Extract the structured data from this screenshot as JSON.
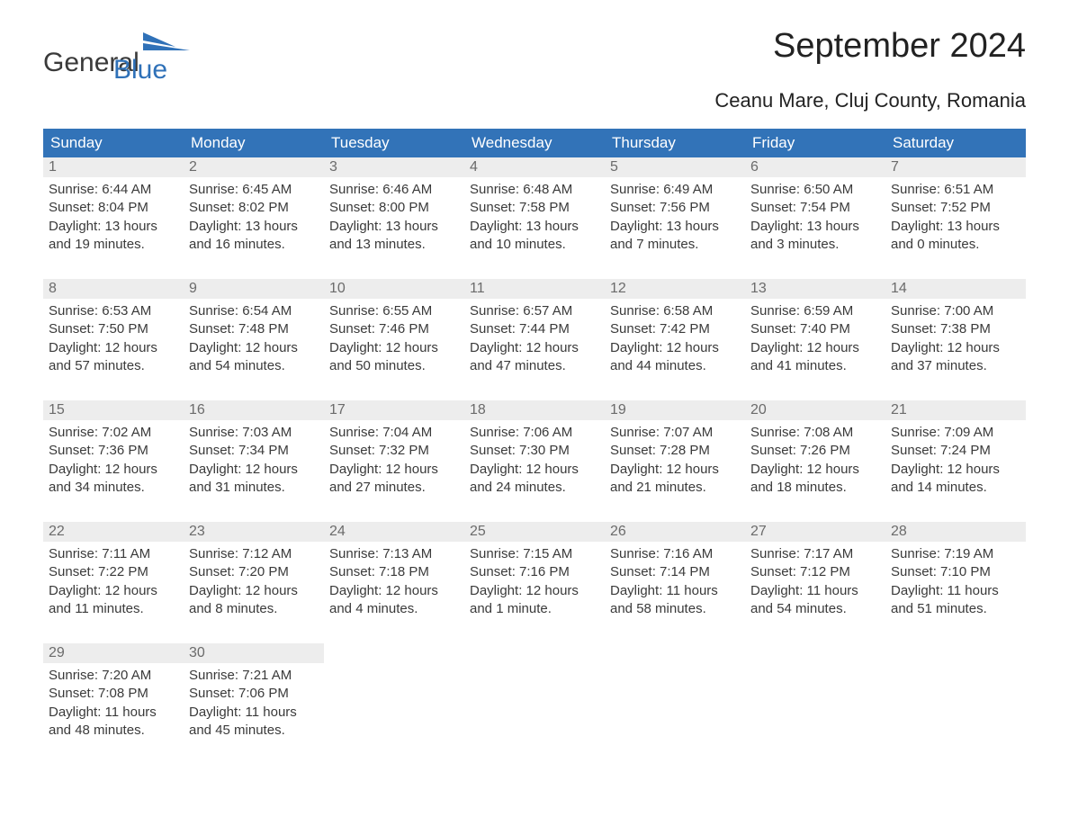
{
  "logo": {
    "word1": "General",
    "word2": "Blue",
    "shape_color": "#2f71b8"
  },
  "title": "September 2024",
  "subtitle": "Ceanu Mare, Cluj County, Romania",
  "colors": {
    "header_bg": "#3273b8",
    "header_text": "#ffffff",
    "daynum_bg": "#ededed",
    "daynum_text": "#6b6b6b",
    "body_text": "#3a3a3a",
    "cell_border": "#3273b8",
    "page_bg": "#ffffff"
  },
  "weekdays": [
    "Sunday",
    "Monday",
    "Tuesday",
    "Wednesday",
    "Thursday",
    "Friday",
    "Saturday"
  ],
  "weeks": [
    [
      {
        "n": "1",
        "sunrise": "Sunrise: 6:44 AM",
        "sunset": "Sunset: 8:04 PM",
        "d1": "Daylight: 13 hours",
        "d2": "and 19 minutes."
      },
      {
        "n": "2",
        "sunrise": "Sunrise: 6:45 AM",
        "sunset": "Sunset: 8:02 PM",
        "d1": "Daylight: 13 hours",
        "d2": "and 16 minutes."
      },
      {
        "n": "3",
        "sunrise": "Sunrise: 6:46 AM",
        "sunset": "Sunset: 8:00 PM",
        "d1": "Daylight: 13 hours",
        "d2": "and 13 minutes."
      },
      {
        "n": "4",
        "sunrise": "Sunrise: 6:48 AM",
        "sunset": "Sunset: 7:58 PM",
        "d1": "Daylight: 13 hours",
        "d2": "and 10 minutes."
      },
      {
        "n": "5",
        "sunrise": "Sunrise: 6:49 AM",
        "sunset": "Sunset: 7:56 PM",
        "d1": "Daylight: 13 hours",
        "d2": "and 7 minutes."
      },
      {
        "n": "6",
        "sunrise": "Sunrise: 6:50 AM",
        "sunset": "Sunset: 7:54 PM",
        "d1": "Daylight: 13 hours",
        "d2": "and 3 minutes."
      },
      {
        "n": "7",
        "sunrise": "Sunrise: 6:51 AM",
        "sunset": "Sunset: 7:52 PM",
        "d1": "Daylight: 13 hours",
        "d2": "and 0 minutes."
      }
    ],
    [
      {
        "n": "8",
        "sunrise": "Sunrise: 6:53 AM",
        "sunset": "Sunset: 7:50 PM",
        "d1": "Daylight: 12 hours",
        "d2": "and 57 minutes."
      },
      {
        "n": "9",
        "sunrise": "Sunrise: 6:54 AM",
        "sunset": "Sunset: 7:48 PM",
        "d1": "Daylight: 12 hours",
        "d2": "and 54 minutes."
      },
      {
        "n": "10",
        "sunrise": "Sunrise: 6:55 AM",
        "sunset": "Sunset: 7:46 PM",
        "d1": "Daylight: 12 hours",
        "d2": "and 50 minutes."
      },
      {
        "n": "11",
        "sunrise": "Sunrise: 6:57 AM",
        "sunset": "Sunset: 7:44 PM",
        "d1": "Daylight: 12 hours",
        "d2": "and 47 minutes."
      },
      {
        "n": "12",
        "sunrise": "Sunrise: 6:58 AM",
        "sunset": "Sunset: 7:42 PM",
        "d1": "Daylight: 12 hours",
        "d2": "and 44 minutes."
      },
      {
        "n": "13",
        "sunrise": "Sunrise: 6:59 AM",
        "sunset": "Sunset: 7:40 PM",
        "d1": "Daylight: 12 hours",
        "d2": "and 41 minutes."
      },
      {
        "n": "14",
        "sunrise": "Sunrise: 7:00 AM",
        "sunset": "Sunset: 7:38 PM",
        "d1": "Daylight: 12 hours",
        "d2": "and 37 minutes."
      }
    ],
    [
      {
        "n": "15",
        "sunrise": "Sunrise: 7:02 AM",
        "sunset": "Sunset: 7:36 PM",
        "d1": "Daylight: 12 hours",
        "d2": "and 34 minutes."
      },
      {
        "n": "16",
        "sunrise": "Sunrise: 7:03 AM",
        "sunset": "Sunset: 7:34 PM",
        "d1": "Daylight: 12 hours",
        "d2": "and 31 minutes."
      },
      {
        "n": "17",
        "sunrise": "Sunrise: 7:04 AM",
        "sunset": "Sunset: 7:32 PM",
        "d1": "Daylight: 12 hours",
        "d2": "and 27 minutes."
      },
      {
        "n": "18",
        "sunrise": "Sunrise: 7:06 AM",
        "sunset": "Sunset: 7:30 PM",
        "d1": "Daylight: 12 hours",
        "d2": "and 24 minutes."
      },
      {
        "n": "19",
        "sunrise": "Sunrise: 7:07 AM",
        "sunset": "Sunset: 7:28 PM",
        "d1": "Daylight: 12 hours",
        "d2": "and 21 minutes."
      },
      {
        "n": "20",
        "sunrise": "Sunrise: 7:08 AM",
        "sunset": "Sunset: 7:26 PM",
        "d1": "Daylight: 12 hours",
        "d2": "and 18 minutes."
      },
      {
        "n": "21",
        "sunrise": "Sunrise: 7:09 AM",
        "sunset": "Sunset: 7:24 PM",
        "d1": "Daylight: 12 hours",
        "d2": "and 14 minutes."
      }
    ],
    [
      {
        "n": "22",
        "sunrise": "Sunrise: 7:11 AM",
        "sunset": "Sunset: 7:22 PM",
        "d1": "Daylight: 12 hours",
        "d2": "and 11 minutes."
      },
      {
        "n": "23",
        "sunrise": "Sunrise: 7:12 AM",
        "sunset": "Sunset: 7:20 PM",
        "d1": "Daylight: 12 hours",
        "d2": "and 8 minutes."
      },
      {
        "n": "24",
        "sunrise": "Sunrise: 7:13 AM",
        "sunset": "Sunset: 7:18 PM",
        "d1": "Daylight: 12 hours",
        "d2": "and 4 minutes."
      },
      {
        "n": "25",
        "sunrise": "Sunrise: 7:15 AM",
        "sunset": "Sunset: 7:16 PM",
        "d1": "Daylight: 12 hours",
        "d2": "and 1 minute."
      },
      {
        "n": "26",
        "sunrise": "Sunrise: 7:16 AM",
        "sunset": "Sunset: 7:14 PM",
        "d1": "Daylight: 11 hours",
        "d2": "and 58 minutes."
      },
      {
        "n": "27",
        "sunrise": "Sunrise: 7:17 AM",
        "sunset": "Sunset: 7:12 PM",
        "d1": "Daylight: 11 hours",
        "d2": "and 54 minutes."
      },
      {
        "n": "28",
        "sunrise": "Sunrise: 7:19 AM",
        "sunset": "Sunset: 7:10 PM",
        "d1": "Daylight: 11 hours",
        "d2": "and 51 minutes."
      }
    ],
    [
      {
        "n": "29",
        "sunrise": "Sunrise: 7:20 AM",
        "sunset": "Sunset: 7:08 PM",
        "d1": "Daylight: 11 hours",
        "d2": "and 48 minutes."
      },
      {
        "n": "30",
        "sunrise": "Sunrise: 7:21 AM",
        "sunset": "Sunset: 7:06 PM",
        "d1": "Daylight: 11 hours",
        "d2": "and 45 minutes."
      },
      null,
      null,
      null,
      null,
      null
    ]
  ]
}
